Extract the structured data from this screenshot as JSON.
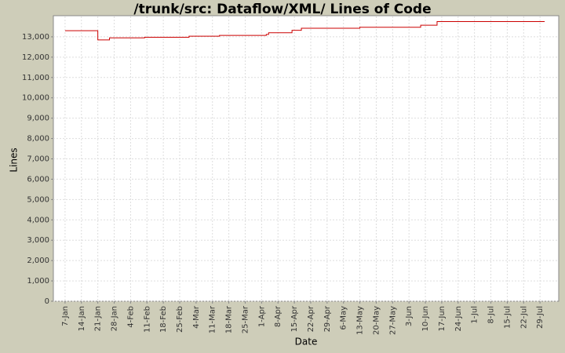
{
  "chart_data": {
    "type": "step-line",
    "title": "/trunk/src: Dataflow/XML/ Lines of Code",
    "x_label": "Date",
    "y_label": "Lines",
    "xlim": [
      "2-Jan",
      "6-Aug"
    ],
    "xticks": [
      "7-Jan",
      "14-Jan",
      "21-Jan",
      "28-Jan",
      "4-Feb",
      "11-Feb",
      "18-Feb",
      "25-Feb",
      "4-Mar",
      "11-Mar",
      "18-Mar",
      "25-Mar",
      "1-Apr",
      "8-Apr",
      "15-Apr",
      "22-Apr",
      "29-Apr",
      "6-May",
      "13-May",
      "20-May",
      "27-May",
      "3-Jun",
      "10-Jun",
      "17-Jun",
      "24-Jun",
      "1-Jul",
      "8-Jul",
      "15-Jul",
      "22-Jul",
      "29-Jul"
    ],
    "ylim": [
      0,
      14000
    ],
    "yticks": [
      0,
      {
        "value": 1000,
        "label": "1,000"
      },
      {
        "value": 2000,
        "label": "2,000"
      },
      {
        "value": 3000,
        "label": "3,000"
      },
      {
        "value": 4000,
        "label": "4,000"
      },
      {
        "value": 5000,
        "label": "5,000"
      },
      {
        "value": 6000,
        "label": "6,000"
      },
      {
        "value": 7000,
        "label": "7,000"
      },
      {
        "value": 8000,
        "label": "8,000"
      },
      {
        "value": 9000,
        "label": "9,000"
      },
      {
        "value": 10000,
        "label": "10,000"
      },
      {
        "value": 11000,
        "label": "11,000"
      },
      {
        "value": 12000,
        "label": "12,000"
      },
      {
        "value": 13000,
        "label": "13,000"
      }
    ],
    "grid": true,
    "series": [
      {
        "color": "#cc0000",
        "x": [
          "7-Jan",
          "21-Jan",
          "26-Jan",
          "10-Feb",
          "1-Mar",
          "14-Mar",
          "3-Apr",
          "4-Apr",
          "14-Apr",
          "18-Apr",
          "13-May",
          "8-Jun",
          "15-Jun",
          "31-Jul"
        ],
        "values": [
          13300,
          12850,
          12950,
          12980,
          13030,
          13070,
          13120,
          13200,
          13320,
          13420,
          13470,
          13570,
          13750,
          13750
        ]
      }
    ]
  }
}
